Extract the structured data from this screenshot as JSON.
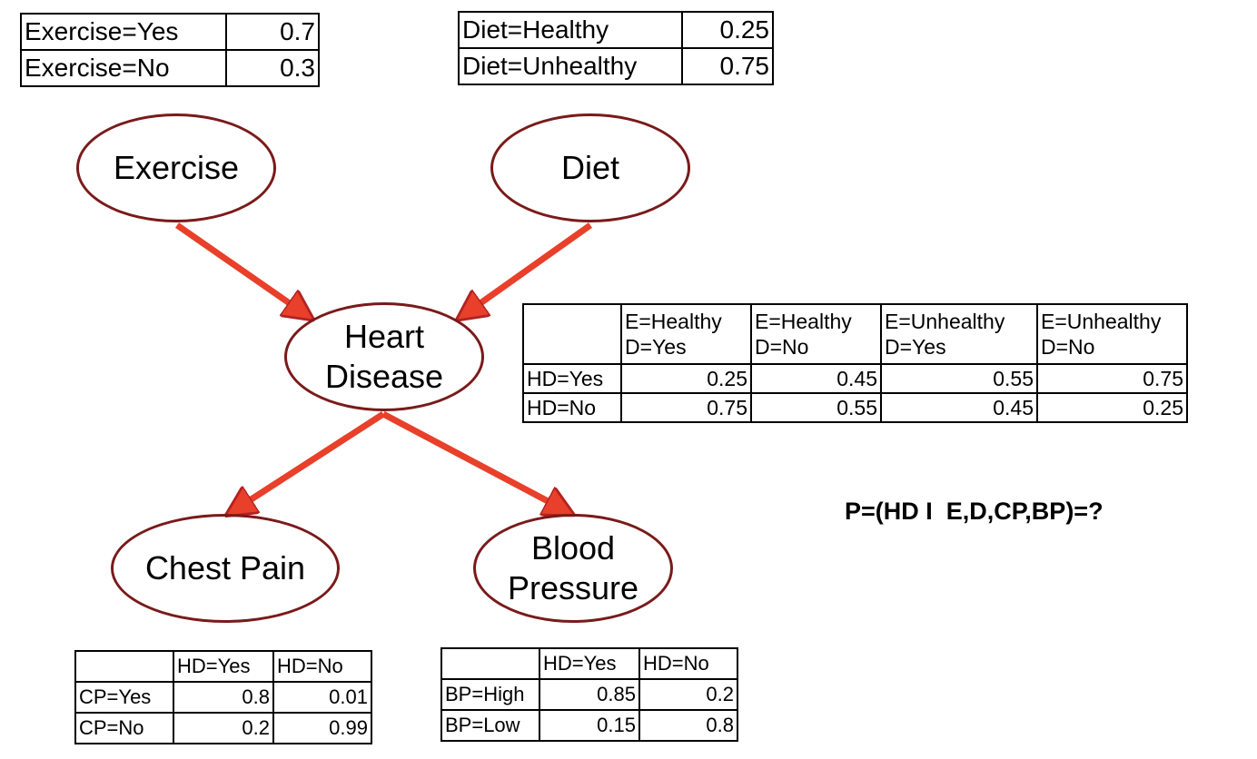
{
  "nodes": {
    "exercise": "Exercise",
    "diet": "Diet",
    "heart_disease_line1": "Heart",
    "heart_disease_line2": "Disease",
    "chest_pain": "Chest Pain",
    "blood_pressure_line1": "Blood",
    "blood_pressure_line2": "Pressure"
  },
  "exercise_table": [
    {
      "label": "Exercise=Yes",
      "value": "0.7"
    },
    {
      "label": "Exercise=No",
      "value": "0.3"
    }
  ],
  "diet_table": [
    {
      "label": "Diet=Healthy",
      "value": "0.25"
    },
    {
      "label": "Diet=Unhealthy",
      "value": "0.75"
    }
  ],
  "hd_table": {
    "headers": [
      {
        "line1": "E=Healthy",
        "line2": "D=Yes"
      },
      {
        "line1": "E=Healthy",
        "line2": "D=No"
      },
      {
        "line1": "E=Unhealthy",
        "line2": "D=Yes"
      },
      {
        "line1": "E=Unhealthy",
        "line2": "D=No"
      }
    ],
    "rows": [
      {
        "label": "HD=Yes",
        "values": [
          "0.25",
          "0.45",
          "0.55",
          "0.75"
        ]
      },
      {
        "label": "HD=No",
        "values": [
          "0.75",
          "0.55",
          "0.45",
          "0.25"
        ]
      }
    ]
  },
  "cp_table": {
    "headers": [
      "HD=Yes",
      "HD=No"
    ],
    "rows": [
      {
        "label": "CP=Yes",
        "values": [
          "0.8",
          "0.01"
        ]
      },
      {
        "label": "CP=No",
        "values": [
          "0.2",
          "0.99"
        ]
      }
    ]
  },
  "bp_table": {
    "headers": [
      "HD=Yes",
      "HD=No"
    ],
    "rows": [
      {
        "label": "BP=High",
        "values": [
          "0.85",
          "0.2"
        ]
      },
      {
        "label": "BP=Low",
        "values": [
          "0.15",
          "0.8"
        ]
      }
    ]
  },
  "query": "P=(HD I  E,D,CP,BP)=?",
  "colors": {
    "arrow": "#e8402a",
    "arrow_outline": "#b22222",
    "node_border": "#7a1a1a"
  }
}
